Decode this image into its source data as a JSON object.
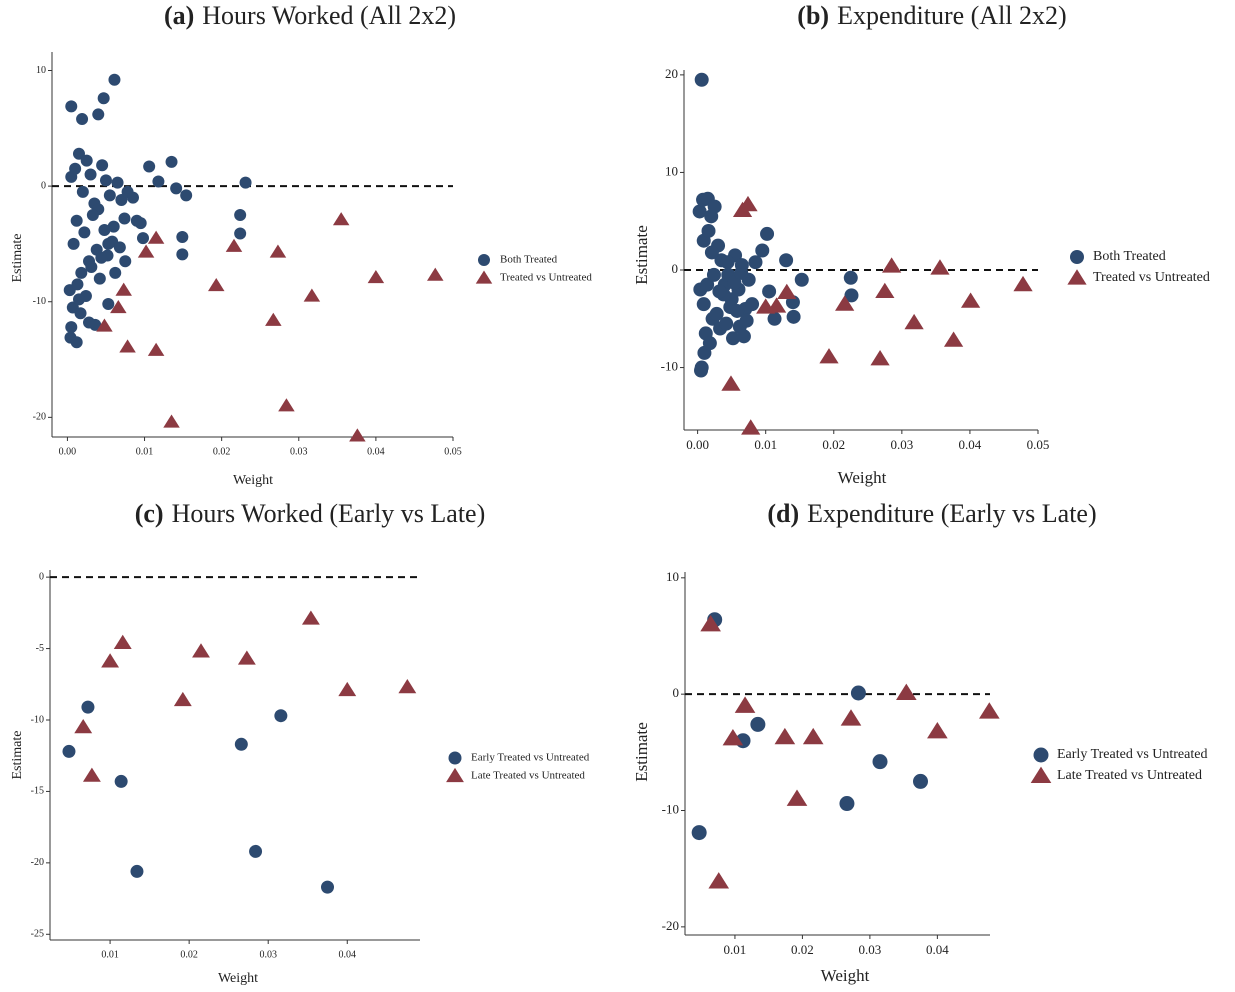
{
  "chart_data": [
    {
      "type": "scatter",
      "label": "(a)",
      "title": "Hours Worked (All 2x2)",
      "x_label": "Weight",
      "y_label": "Estimate",
      "xlim": [
        -0.002,
        0.05
      ],
      "ylim": [
        -21.7,
        11.6
      ],
      "xticks": [
        {
          "value": 0,
          "label": "0.00"
        },
        0.01,
        0.02,
        0.03,
        0.04,
        0.05
      ],
      "yticks": [
        -20,
        -10,
        0,
        10
      ],
      "reference_line": 0,
      "series": [
        {
          "name": "Both Treated",
          "color": "#2d4a70",
          "marker": "circle",
          "x": [
            0.0005,
            0.0019,
            0.004,
            0.0047,
            0.0061,
            0.0005,
            0.001,
            0.0015,
            0.002,
            0.0025,
            0.003,
            0.0035,
            0.004,
            0.0045,
            0.005,
            0.0055,
            0.006,
            0.0065,
            0.007,
            0.0008,
            0.0012,
            0.0018,
            0.0022,
            0.0028,
            0.0033,
            0.0038,
            0.0042,
            0.0048,
            0.0052,
            0.0058,
            0.0003,
            0.0007,
            0.0013,
            0.0017,
            0.0024,
            0.0031,
            0.0036,
            0.0044,
            0.0053,
            0.0062,
            0.0068,
            0.0074,
            0.0078,
            0.0085,
            0.0095,
            0.0106,
            0.0118,
            0.0135,
            0.0141,
            0.0154,
            0.0231,
            0.0224,
            0.0224,
            0.0149,
            0.0149,
            0.0053,
            0.0004,
            0.0005,
            0.0012,
            0.0028,
            0.0015,
            0.009,
            0.0098,
            0.0075
          ],
          "values": [
            6.9,
            5.8,
            6.2,
            7.6,
            9.2,
            0.8,
            1.5,
            2.8,
            -0.5,
            2.2,
            1.0,
            -1.5,
            -2.0,
            1.8,
            0.5,
            -0.8,
            -3.5,
            0.3,
            -1.2,
            -5.0,
            -3.0,
            -7.5,
            -4.0,
            -6.5,
            -2.5,
            -5.5,
            -8.0,
            -3.8,
            -6.0,
            -4.8,
            -9.0,
            -10.5,
            -8.5,
            -11.0,
            -9.5,
            -7.0,
            -12.0,
            -6.2,
            -5.0,
            -7.5,
            -5.3,
            -2.8,
            -0.5,
            -1.0,
            -3.2,
            1.7,
            0.4,
            2.1,
            -0.2,
            -0.8,
            0.3,
            -2.5,
            -4.1,
            -4.4,
            -5.9,
            -10.2,
            -13.1,
            -12.2,
            -13.5,
            -11.8,
            -9.8,
            -3.0,
            -4.5,
            -6.5
          ]
        },
        {
          "name": "Treated vs Untreated",
          "color": "#8c3a42",
          "marker": "triangle",
          "x": [
            0.0048,
            0.0066,
            0.0073,
            0.0078,
            0.0102,
            0.0115,
            0.0115,
            0.0135,
            0.0193,
            0.0216,
            0.0267,
            0.0273,
            0.0284,
            0.0317,
            0.0355,
            0.0376,
            0.04,
            0.0477
          ],
          "values": [
            -12.1,
            -10.5,
            -9.0,
            -13.9,
            -5.7,
            -4.5,
            -14.2,
            -20.4,
            -8.6,
            -5.2,
            -11.6,
            -5.7,
            -19.0,
            -9.5,
            -2.9,
            -21.6,
            -7.9,
            -7.7
          ]
        }
      ]
    },
    {
      "type": "scatter",
      "label": "(b)",
      "title": "Expenditure (All 2x2)",
      "x_label": "Weight",
      "y_label": "Estimate",
      "xlim": [
        -0.002,
        0.05
      ],
      "ylim": [
        -16.4,
        20.5
      ],
      "xticks": [
        {
          "value": 0,
          "label": "0.00"
        },
        0.01,
        0.02,
        0.03,
        0.04,
        0.05
      ],
      "yticks": [
        -10,
        0,
        10,
        20
      ],
      "reference_line": 0,
      "series": [
        {
          "name": "Both Treated",
          "color": "#2d4a70",
          "marker": "circle",
          "x": [
            0.0006,
            0.0003,
            0.0008,
            0.0015,
            0.002,
            0.0025,
            0.003,
            0.0035,
            0.004,
            0.0045,
            0.005,
            0.0055,
            0.006,
            0.0065,
            0.007,
            0.0075,
            0.008,
            0.0005,
            0.001,
            0.0012,
            0.0018,
            0.0022,
            0.0028,
            0.0033,
            0.0038,
            0.0042,
            0.0048,
            0.0052,
            0.0058,
            0.0062,
            0.0068,
            0.0004,
            0.0009,
            0.0014,
            0.0024,
            0.0032,
            0.0044,
            0.0054,
            0.0064,
            0.0072,
            0.0085,
            0.0095,
            0.0102,
            0.0105,
            0.0113,
            0.013,
            0.014,
            0.0153,
            0.0141,
            0.0225,
            0.0226,
            0.0006,
            0.0009,
            0.0016,
            0.0021
          ],
          "values": [
            19.5,
            6.0,
            7.2,
            7.3,
            5.5,
            6.5,
            2.5,
            1.0,
            -1.5,
            -0.5,
            -3.0,
            1.5,
            -2.0,
            0.5,
            -4.0,
            -1.0,
            -3.5,
            -10.3,
            -8.5,
            -6.5,
            -7.5,
            -5.0,
            -4.5,
            -6.0,
            -2.5,
            -5.5,
            -3.8,
            -7.0,
            -4.2,
            -5.8,
            -6.8,
            -2.0,
            -3.5,
            -1.5,
            -0.5,
            -2.2,
            0.8,
            -1.3,
            -0.3,
            -5.2,
            0.8,
            2.0,
            3.7,
            -2.2,
            -5.0,
            1.0,
            -3.3,
            -1.0,
            -4.8,
            -0.8,
            -2.6,
            -10.0,
            3.0,
            4.0,
            1.8
          ]
        },
        {
          "name": "Treated vs Untreated",
          "color": "#8c3a42",
          "marker": "triangle",
          "x": [
            0.0078,
            0.0049,
            0.0066,
            0.0074,
            0.01,
            0.0116,
            0.0131,
            0.0193,
            0.0216,
            0.0268,
            0.0275,
            0.0285,
            0.0318,
            0.0356,
            0.0376,
            0.0401,
            0.0478
          ],
          "values": [
            -16.2,
            -11.7,
            6.1,
            6.7,
            -3.8,
            -3.7,
            -2.3,
            -8.9,
            -3.5,
            -9.1,
            -2.2,
            0.4,
            -5.4,
            0.2,
            -7.2,
            -3.2,
            -1.5
          ]
        }
      ]
    },
    {
      "type": "scatter",
      "label": "(c)",
      "title": "Hours Worked (Early vs Late)",
      "x_label": "Weight",
      "y_label": "Estimate",
      "xlim": [
        0.0024,
        0.0492
      ],
      "ylim": [
        -25.4,
        0.5
      ],
      "xticks": [
        0.01,
        0.02,
        0.03,
        0.04
      ],
      "yticks": [
        0,
        -5,
        -10,
        -15,
        -20,
        -25
      ],
      "reference_line": 0,
      "series": [
        {
          "name": "Early Treated vs Untreated",
          "color": "#2d4a70",
          "marker": "circle",
          "x": [
            0.0048,
            0.0072,
            0.0114,
            0.0134,
            0.0266,
            0.0284,
            0.0316,
            0.0375
          ],
          "values": [
            -12.2,
            -9.1,
            -14.3,
            -20.6,
            -11.7,
            -19.2,
            -9.7,
            -21.7
          ]
        },
        {
          "name": "Late Treated vs Untreated",
          "color": "#8c3a42",
          "marker": "triangle",
          "x": [
            0.0066,
            0.0077,
            0.01,
            0.0116,
            0.0192,
            0.0215,
            0.0273,
            0.0354,
            0.04,
            0.0476
          ],
          "values": [
            -10.5,
            -13.9,
            -5.9,
            -4.6,
            -8.6,
            -5.2,
            -5.7,
            -2.9,
            -7.9,
            -7.7
          ]
        }
      ]
    },
    {
      "type": "scatter",
      "label": "(d)",
      "title": "Expenditure (Early vs Late)",
      "x_label": "Weight",
      "y_label": "Estimate",
      "xlim": [
        0.0026,
        0.0478
      ],
      "ylim": [
        -20.7,
        10.5
      ],
      "xticks": [
        0.01,
        0.02,
        0.03,
        0.04
      ],
      "yticks": [
        -20,
        -10,
        0,
        10
      ],
      "reference_line": 0,
      "series": [
        {
          "name": "Early Treated vs Untreated",
          "color": "#2d4a70",
          "marker": "circle",
          "x": [
            0.0047,
            0.007,
            0.0112,
            0.0134,
            0.0266,
            0.0283,
            0.0315,
            0.0375
          ],
          "values": [
            -11.9,
            6.4,
            -4.0,
            -2.6,
            -9.4,
            0.1,
            -5.8,
            -7.5
          ]
        },
        {
          "name": "Late Treated vs Untreated",
          "color": "#8c3a42",
          "marker": "triangle",
          "x": [
            0.0064,
            0.0076,
            0.0097,
            0.0115,
            0.0174,
            0.0192,
            0.0216,
            0.0272,
            0.0354,
            0.04,
            0.0477
          ],
          "values": [
            6.0,
            -16.1,
            -3.8,
            -1.0,
            -3.7,
            -9.0,
            -3.7,
            -2.1,
            0.1,
            -3.2,
            -1.5
          ]
        }
      ]
    }
  ]
}
